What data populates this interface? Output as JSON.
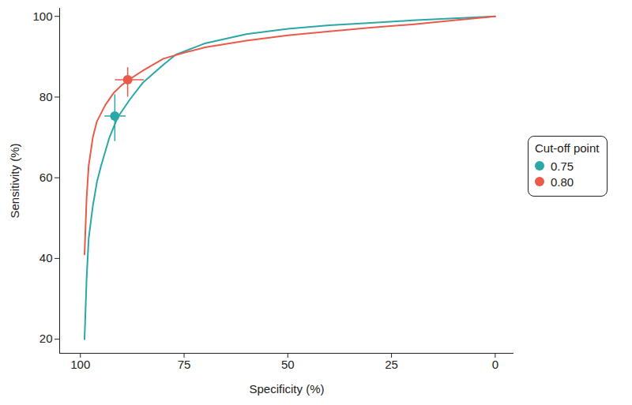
{
  "chart_data": {
    "type": "line",
    "x_label": "Specificity (%)",
    "y_label": "Sensitivity (%)",
    "legend_title": "Cut-off point",
    "legend": "right",
    "xlim": [
      105,
      -4.5
    ],
    "ylim": [
      16.5,
      102
    ],
    "xticks": [
      100,
      75,
      50,
      25,
      0
    ],
    "yticks": [
      20,
      40,
      60,
      80,
      100
    ],
    "series": [
      {
        "name": "0.75",
        "color": "#2aa7a6",
        "x": [
          99,
          98.5,
          98,
          97,
          96,
          95,
          93,
          91,
          88,
          85,
          80,
          77,
          70,
          60,
          50,
          40,
          30,
          20,
          10,
          0
        ],
        "values": [
          20,
          35,
          45,
          53,
          59,
          63,
          70,
          75,
          79.5,
          83.5,
          88,
          90.5,
          93.3,
          95.6,
          96.9,
          97.8,
          98.4,
          99,
          99.5,
          100
        ],
        "point_x": 91.7,
        "point_y": 75.3,
        "point_x_ci": [
          94.1,
          89
        ],
        "point_y_ci": [
          69,
          80.6
        ]
      },
      {
        "name": "0.80",
        "color": "#ea5a4a",
        "x": [
          99,
          98.5,
          98,
          97,
          96,
          94,
          92,
          90,
          88,
          85,
          80,
          75,
          70,
          60,
          50,
          40,
          30,
          20,
          10,
          0
        ],
        "values": [
          41,
          55,
          63,
          70,
          74,
          78,
          81,
          83,
          84.5,
          86.5,
          89.5,
          91,
          92.3,
          94,
          95.3,
          96.3,
          97.2,
          98,
          99,
          100
        ],
        "point_x": 88.6,
        "point_y": 84.3,
        "point_x_ci": [
          91.6,
          84.6
        ],
        "point_y_ci": [
          80,
          87.3
        ]
      }
    ]
  }
}
